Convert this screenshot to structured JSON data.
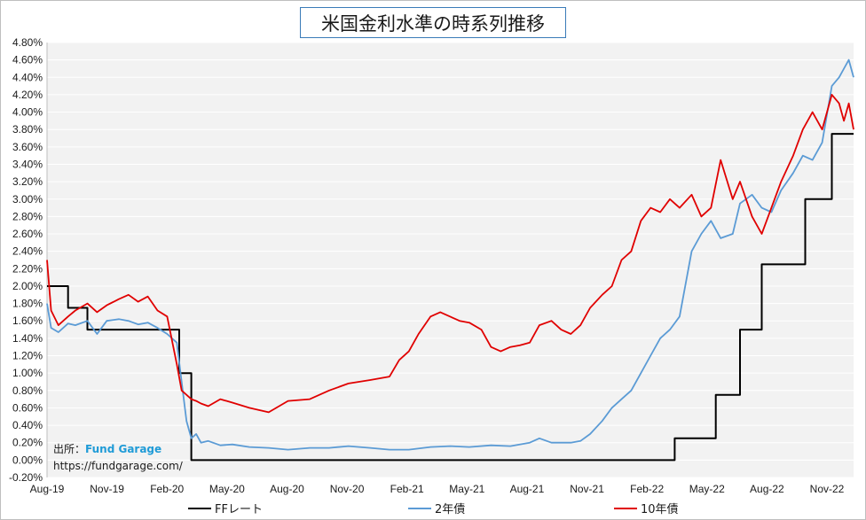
{
  "title": "米国金利水準の時系列推移",
  "credit": {
    "prefix": "出所：",
    "brand": "Fund Garage",
    "url": "https://fundgarage.com/"
  },
  "colors": {
    "ff": "#000000",
    "two": "#5b9bd5",
    "ten": "#e00000",
    "plot_bg": "#f2f2f2",
    "grid": "#ffffff"
  },
  "chart_data": {
    "type": "line",
    "title": "米国金利水準の時系列推移",
    "y_unit": "%",
    "ylim": [
      -0.2,
      4.8
    ],
    "ystep": 0.2,
    "y_ticks": [
      "-0.20%",
      "0.00%",
      "0.20%",
      "0.40%",
      "0.60%",
      "0.80%",
      "1.00%",
      "1.20%",
      "1.40%",
      "1.60%",
      "1.80%",
      "2.00%",
      "2.20%",
      "2.40%",
      "2.60%",
      "2.80%",
      "3.00%",
      "3.20%",
      "3.40%",
      "3.60%",
      "3.80%",
      "4.00%",
      "4.20%",
      "4.40%",
      "4.60%",
      "4.80%"
    ],
    "x_ticks": [
      "Aug-19",
      "Nov-19",
      "Feb-20",
      "May-20",
      "Aug-20",
      "Nov-20",
      "Feb-21",
      "May-21",
      "Aug-21",
      "Nov-21",
      "Feb-22",
      "May-22",
      "Aug-22",
      "Nov-22"
    ],
    "x_domain": [
      2019.583,
      2022.92
    ],
    "legend_position": "bottom",
    "series": [
      {
        "name": "FFレート",
        "color": "#000000",
        "step": true,
        "x": [
          2019.583,
          2019.67,
          2019.67,
          2019.75,
          2019.75,
          2019.92,
          2019.92,
          2020.13,
          2020.13,
          2020.18,
          2020.18,
          2022.18,
          2022.18,
          2022.35,
          2022.35,
          2022.45,
          2022.45,
          2022.54,
          2022.54,
          2022.72,
          2022.72,
          2022.83,
          2022.83,
          2022.92
        ],
        "values": [
          2.0,
          2.0,
          1.75,
          1.75,
          1.5,
          1.5,
          1.5,
          1.5,
          1.0,
          1.0,
          0.0,
          0.0,
          0.25,
          0.25,
          0.75,
          0.75,
          1.5,
          1.5,
          2.25,
          2.25,
          3.0,
          3.0,
          3.75,
          3.75
        ]
      },
      {
        "name": "2年債",
        "color": "#5b9bd5",
        "x": [
          2019.583,
          2019.6,
          2019.63,
          2019.67,
          2019.7,
          2019.75,
          2019.79,
          2019.83,
          2019.88,
          2019.92,
          2019.96,
          2020.0,
          2020.04,
          2020.08,
          2020.12,
          2020.14,
          2020.16,
          2020.18,
          2020.2,
          2020.22,
          2020.25,
          2020.3,
          2020.35,
          2020.42,
          2020.5,
          2020.58,
          2020.67,
          2020.75,
          2020.83,
          2020.92,
          2021.0,
          2021.08,
          2021.17,
          2021.25,
          2021.33,
          2021.42,
          2021.5,
          2021.58,
          2021.62,
          2021.67,
          2021.75,
          2021.79,
          2021.83,
          2021.88,
          2021.92,
          2021.96,
          2022.0,
          2022.04,
          2022.08,
          2022.12,
          2022.16,
          2022.2,
          2022.25,
          2022.29,
          2022.33,
          2022.37,
          2022.42,
          2022.45,
          2022.5,
          2022.54,
          2022.58,
          2022.62,
          2022.67,
          2022.71,
          2022.75,
          2022.79,
          2022.83,
          2022.86,
          2022.88,
          2022.9,
          2022.92
        ],
        "values": [
          1.8,
          1.52,
          1.47,
          1.57,
          1.55,
          1.6,
          1.45,
          1.6,
          1.62,
          1.6,
          1.56,
          1.58,
          1.52,
          1.45,
          1.35,
          0.9,
          0.45,
          0.25,
          0.3,
          0.2,
          0.22,
          0.17,
          0.18,
          0.15,
          0.14,
          0.12,
          0.14,
          0.14,
          0.16,
          0.14,
          0.12,
          0.12,
          0.15,
          0.16,
          0.15,
          0.17,
          0.16,
          0.2,
          0.25,
          0.2,
          0.2,
          0.22,
          0.3,
          0.45,
          0.6,
          0.7,
          0.8,
          1.0,
          1.2,
          1.4,
          1.5,
          1.65,
          2.4,
          2.6,
          2.75,
          2.55,
          2.6,
          2.95,
          3.05,
          2.9,
          2.85,
          3.1,
          3.3,
          3.5,
          3.45,
          3.65,
          4.3,
          4.4,
          4.5,
          4.6,
          4.4
        ]
      },
      {
        "name": "10年債",
        "color": "#e00000",
        "x": [
          2019.583,
          2019.6,
          2019.63,
          2019.67,
          2019.7,
          2019.75,
          2019.79,
          2019.83,
          2019.88,
          2019.92,
          2019.96,
          2020.0,
          2020.04,
          2020.08,
          2020.12,
          2020.14,
          2020.16,
          2020.18,
          2020.2,
          2020.22,
          2020.25,
          2020.3,
          2020.35,
          2020.42,
          2020.5,
          2020.58,
          2020.67,
          2020.75,
          2020.83,
          2020.92,
          2021.0,
          2021.04,
          2021.08,
          2021.12,
          2021.17,
          2021.21,
          2021.25,
          2021.29,
          2021.33,
          2021.38,
          2021.42,
          2021.46,
          2021.5,
          2021.54,
          2021.58,
          2021.62,
          2021.67,
          2021.71,
          2021.75,
          2021.79,
          2021.83,
          2021.88,
          2021.92,
          2021.96,
          2022.0,
          2022.04,
          2022.08,
          2022.12,
          2022.16,
          2022.2,
          2022.25,
          2022.29,
          2022.33,
          2022.37,
          2022.42,
          2022.45,
          2022.5,
          2022.54,
          2022.58,
          2022.62,
          2022.67,
          2022.71,
          2022.75,
          2022.79,
          2022.83,
          2022.86,
          2022.88,
          2022.9,
          2022.92
        ],
        "values": [
          2.3,
          1.72,
          1.55,
          1.65,
          1.72,
          1.8,
          1.7,
          1.78,
          1.85,
          1.9,
          1.82,
          1.88,
          1.72,
          1.65,
          1.1,
          0.8,
          0.75,
          0.7,
          0.68,
          0.65,
          0.62,
          0.7,
          0.66,
          0.6,
          0.55,
          0.68,
          0.7,
          0.8,
          0.88,
          0.92,
          0.96,
          1.15,
          1.25,
          1.45,
          1.65,
          1.7,
          1.65,
          1.6,
          1.58,
          1.5,
          1.3,
          1.25,
          1.3,
          1.32,
          1.35,
          1.55,
          1.6,
          1.5,
          1.45,
          1.55,
          1.75,
          1.9,
          2.0,
          2.3,
          2.4,
          2.75,
          2.9,
          2.85,
          3.0,
          2.9,
          3.05,
          2.8,
          2.9,
          3.45,
          3.0,
          3.2,
          2.8,
          2.6,
          2.9,
          3.2,
          3.5,
          3.8,
          4.0,
          3.8,
          4.2,
          4.1,
          3.9,
          4.1,
          3.8
        ]
      }
    ]
  },
  "legend": [
    {
      "label": "FFレート",
      "color": "#000000"
    },
    {
      "label": "2年債",
      "color": "#5b9bd5"
    },
    {
      "label": "10年債",
      "color": "#e00000"
    }
  ]
}
